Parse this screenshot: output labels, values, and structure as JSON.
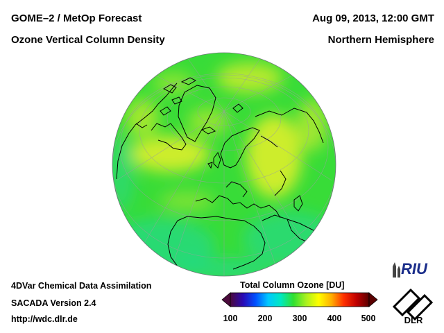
{
  "header": {
    "product": "GOME–2 / MetOp Forecast",
    "quantity": "Ozone Vertical Column Density",
    "datetime": "Aug 09, 2013, 12:00 GMT",
    "region": "Northern Hemisphere"
  },
  "footer": {
    "method": "4DVar Chemical Data Assimilation",
    "version": "SACADA Version 2.4",
    "url": "http://wdc.dlr.de"
  },
  "colorbar": {
    "title": "Total Column Ozone [DU]",
    "ticks": [
      "100",
      "200",
      "300",
      "400",
      "500"
    ],
    "range": [
      100,
      500
    ],
    "colors": [
      "#4b0a3c",
      "#2a0ab4",
      "#0050ff",
      "#00c8ff",
      "#00e8c0",
      "#30e030",
      "#a8f020",
      "#ffff00",
      "#ffb000",
      "#ff3000",
      "#c00000",
      "#5a0000"
    ]
  },
  "map": {
    "ozone_colors": {
      "base": "#38dc38",
      "high": "#e8f028",
      "mid": "#a8e830",
      "low": "#20d89a"
    }
  },
  "logos": {
    "riu": "RIU",
    "dlr": "DLR"
  }
}
